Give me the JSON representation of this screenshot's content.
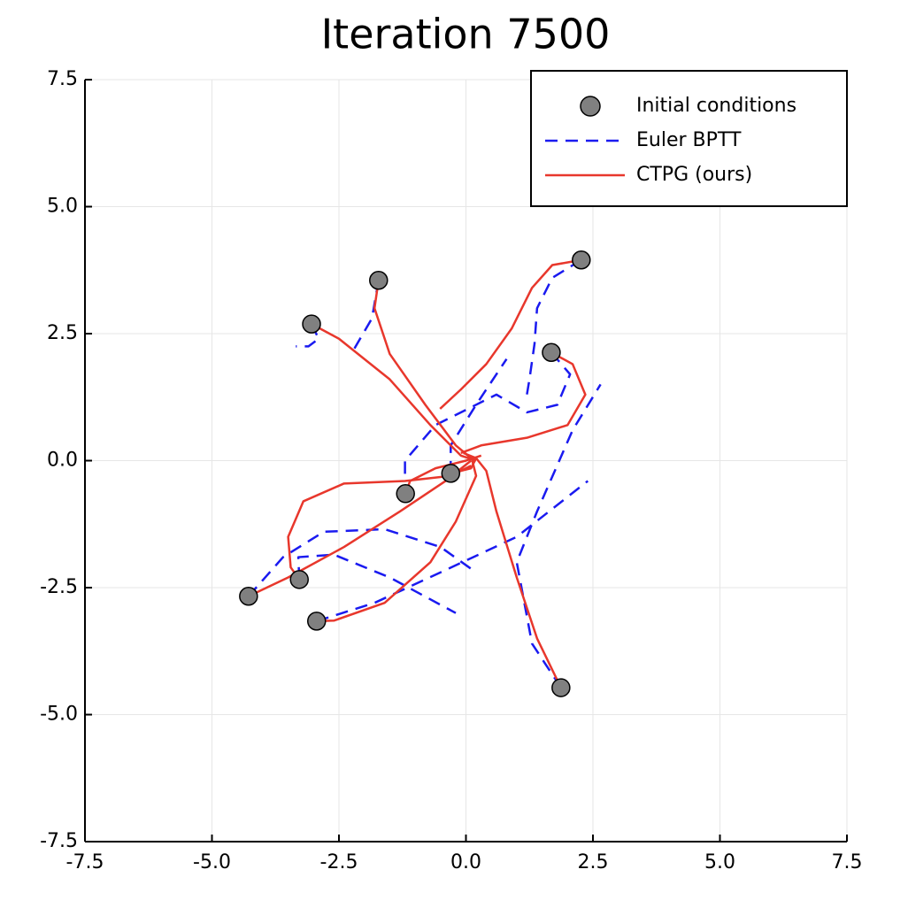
{
  "chart_data": {
    "type": "trajectory",
    "title": "Iteration 7500",
    "xlim": [
      -7.5,
      7.5
    ],
    "ylim": [
      -7.5,
      7.5
    ],
    "xticks": [
      {
        "value": -7.5,
        "label": "-7.5"
      },
      {
        "value": -5,
        "label": "-5.0"
      },
      {
        "value": -2.5,
        "label": "-2.5"
      },
      {
        "value": 0,
        "label": "0.0"
      },
      {
        "value": 2.5,
        "label": "2.5"
      },
      {
        "value": 5,
        "label": "5.0"
      },
      {
        "value": 7.5,
        "label": "7.5"
      }
    ],
    "yticks": [
      {
        "value": -7.5,
        "label": "-7.5"
      },
      {
        "value": -5,
        "label": "-5.0"
      },
      {
        "value": -2.5,
        "label": "-2.5"
      },
      {
        "value": 0,
        "label": "0.0"
      },
      {
        "value": 2.5,
        "label": "2.5"
      },
      {
        "value": 5,
        "label": "5.0"
      },
      {
        "value": 7.5,
        "label": "7.5"
      }
    ],
    "grid": true,
    "legend": "top right",
    "series": [
      {
        "name": "Initial conditions",
        "kind": "scatter",
        "color": "#808080",
        "x": [
          2.27,
          -1.72,
          -3.04,
          1.68,
          -0.3,
          -1.19,
          -3.28,
          -4.28,
          -2.94,
          1.87
        ],
        "y": [
          3.95,
          3.55,
          2.69,
          2.13,
          -0.25,
          -0.65,
          -2.34,
          -2.67,
          -3.16,
          -4.47
        ]
      },
      {
        "name": "Euler BPTT",
        "kind": "dashed",
        "color": "#1a1af0",
        "paths": [
          {
            "x": [
              2.27,
              1.7,
              1.4,
              1.35,
              1.25,
              1.2
            ],
            "y": [
              3.95,
              3.6,
              3.0,
              2.3,
              1.6,
              1.3
            ]
          },
          {
            "x": [
              -1.72,
              -1.85,
              -2.2
            ],
            "y": [
              3.55,
              2.8,
              2.2
            ]
          },
          {
            "x": [
              -3.04,
              -2.9,
              -3.1,
              -3.35
            ],
            "y": [
              2.69,
              2.4,
              2.25,
              2.25
            ]
          },
          {
            "x": [
              1.68,
              2.05,
              1.8,
              1.2,
              0.6,
              0.1,
              -0.6,
              -1.2,
              -1.2
            ],
            "y": [
              2.13,
              1.7,
              1.1,
              0.95,
              1.3,
              1.05,
              0.7,
              0.0,
              -0.4
            ]
          },
          {
            "x": [
              -0.3,
              -0.3,
              0.2,
              0.8
            ],
            "y": [
              -0.25,
              0.3,
              1.1,
              2.0
            ]
          },
          {
            "x": [
              -4.28,
              -3.6,
              -2.8,
              -1.6,
              -0.5,
              0.2
            ],
            "y": [
              -2.67,
              -1.9,
              -1.4,
              -1.35,
              -1.7,
              -2.2
            ]
          },
          {
            "x": [
              -3.28,
              -3.3,
              -2.6,
              -1.5,
              -0.2
            ],
            "y": [
              -2.34,
              -1.9,
              -1.85,
              -2.3,
              -3.0
            ]
          },
          {
            "x": [
              -2.94,
              -1.8,
              -0.5,
              1.0,
              2.4
            ],
            "y": [
              -3.16,
              -2.8,
              -2.2,
              -1.5,
              -0.4
            ]
          },
          {
            "x": [
              1.87,
              1.3,
              1.0,
              1.4,
              2.1,
              2.65
            ],
            "y": [
              -4.47,
              -3.6,
              -2.0,
              -1.0,
              0.6,
              1.5
            ]
          }
        ]
      },
      {
        "name": "CTPG (ours)",
        "kind": "solid",
        "color": "#e8372c",
        "paths": [
          {
            "x": [
              2.27,
              1.7,
              1.3,
              0.9,
              0.4,
              -0.1,
              -0.51
            ],
            "y": [
              3.95,
              3.85,
              3.4,
              2.6,
              1.9,
              1.4,
              1.02
            ]
          },
          {
            "x": [
              -1.72,
              -1.8,
              -1.5,
              -0.8,
              -0.2,
              0.1
            ],
            "y": [
              3.55,
              3.0,
              2.1,
              1.1,
              0.3,
              0.05
            ]
          },
          {
            "x": [
              -3.04,
              -2.5,
              -1.5,
              -0.7,
              -0.1,
              0.2
            ],
            "y": [
              2.69,
              2.4,
              1.6,
              0.7,
              0.1,
              0.0
            ]
          },
          {
            "x": [
              1.68,
              2.1,
              2.35,
              2.0,
              1.2,
              0.3,
              -0.1
            ],
            "y": [
              2.13,
              1.9,
              1.3,
              0.7,
              0.45,
              0.3,
              0.15
            ]
          },
          {
            "x": [
              -0.3,
              0.1,
              0.2,
              -0.05
            ],
            "y": [
              -0.25,
              -0.15,
              0.05,
              0.15
            ]
          },
          {
            "x": [
              -1.19,
              -1.1,
              -0.6,
              0.0,
              0.3
            ],
            "y": [
              -0.65,
              -0.4,
              -0.15,
              0.0,
              0.1
            ]
          },
          {
            "x": [
              -3.28,
              -3.45,
              -3.5,
              -3.2,
              -2.4,
              -1.2,
              -0.3,
              0.1
            ],
            "y": [
              -2.34,
              -2.1,
              -1.5,
              -0.8,
              -0.45,
              -0.4,
              -0.3,
              -0.1
            ]
          },
          {
            "x": [
              -4.28,
              -3.5,
              -2.4,
              -1.3,
              -0.4,
              0.1
            ],
            "y": [
              -2.67,
              -2.3,
              -1.7,
              -1.0,
              -0.4,
              0.0
            ]
          },
          {
            "x": [
              -2.94,
              -2.6,
              -1.6,
              -0.7,
              -0.2,
              0.2,
              0.1
            ],
            "y": [
              -3.16,
              -3.15,
              -2.8,
              -2.0,
              -1.2,
              -0.3,
              0.1
            ]
          },
          {
            "x": [
              1.87,
              1.4,
              1.0,
              0.6,
              0.4,
              0.2
            ],
            "y": [
              -4.47,
              -3.5,
              -2.3,
              -1.0,
              -0.2,
              0.05
            ]
          }
        ]
      }
    ]
  }
}
